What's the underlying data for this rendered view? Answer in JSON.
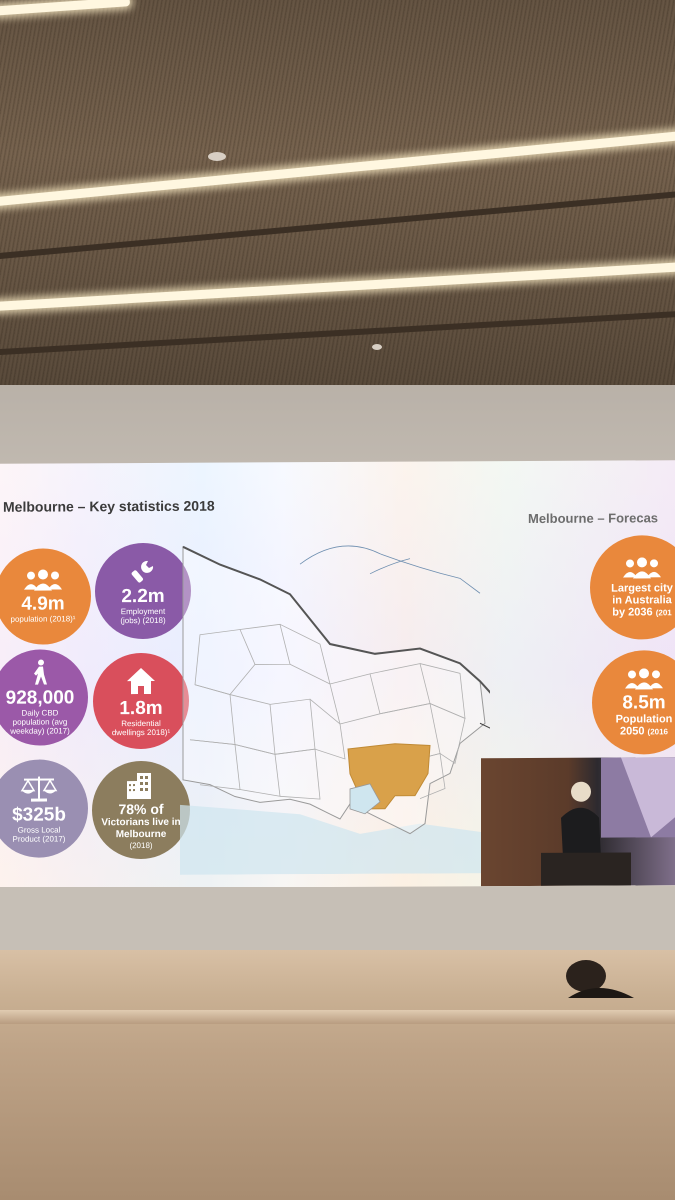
{
  "slide": {
    "title": "Melbourne – Key statistics 2018",
    "forecast_title": "Melbourne – Forecas"
  },
  "stats": [
    {
      "id": "population",
      "value": "4.9m",
      "label": "population (2018)¹",
      "color": "#e9883c",
      "icon": "people-icon"
    },
    {
      "id": "employment",
      "value": "2.2m",
      "label_lines": [
        "Employment",
        "(jobs) (2018)"
      ],
      "color": "#8a5aa7",
      "icon": "wrench-icon"
    },
    {
      "id": "cbd",
      "value": "928,000",
      "label_lines": [
        "Daily CBD",
        "population (avg",
        "weekday) (2017)"
      ],
      "color": "#9b59a8",
      "icon": "walking-icon"
    },
    {
      "id": "dwellings",
      "value": "1.8m",
      "label_lines": [
        "Residential",
        "dwellings 2018)¹"
      ],
      "color": "#d94f5c",
      "icon": "house-icon"
    },
    {
      "id": "gdp",
      "value": "$325b",
      "label_lines": [
        "Gross Local",
        "Product (2017)"
      ],
      "color": "#9a8fb2",
      "icon": "scales-icon"
    },
    {
      "id": "victorians",
      "value_lines": [
        "78% of",
        "Victorians live in",
        "Melbourne"
      ],
      "sub": "(2018)",
      "color": "#8c7d5e",
      "icon": "building-icon"
    }
  ],
  "forecast": [
    {
      "id": "largest",
      "lines": [
        "Largest city",
        "in Australia",
        "by 2036"
      ],
      "sub": "(201",
      "color": "#e9883c",
      "icon": "people-icon"
    },
    {
      "id": "pop2050",
      "value": "8.5m",
      "lines": [
        "Population",
        "2050"
      ],
      "sub": "(2016",
      "color": "#e9883c",
      "icon": "people-icon"
    }
  ],
  "map": {
    "highlight_color": "#d9a14a",
    "border_color": "#a9a9a9",
    "sea_color": "#cfe6ef"
  }
}
